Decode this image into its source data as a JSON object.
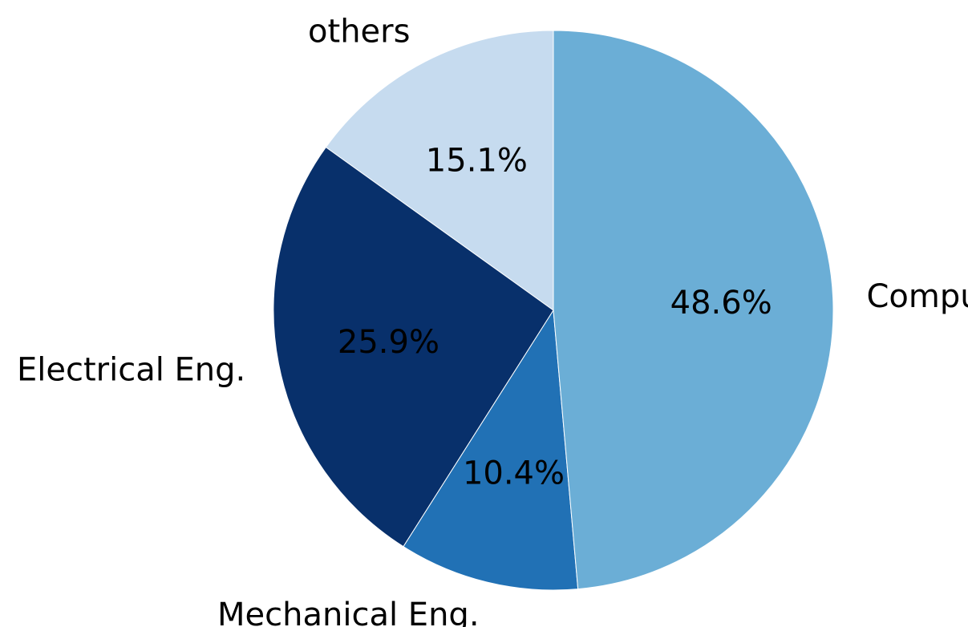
{
  "chart_data": {
    "type": "pie",
    "start_angle_deg": 90,
    "direction": "counterclockwise",
    "slices": [
      {
        "label": "others",
        "value": 15.1,
        "pct_label": "15.1%",
        "color": "#c6dbef"
      },
      {
        "label": "Electrical Eng.",
        "value": 25.9,
        "pct_label": "25.9%",
        "color": "#08306b"
      },
      {
        "label": "Mechanical Eng.",
        "value": 10.4,
        "pct_label": "10.4%",
        "color": "#2171b5"
      },
      {
        "label": "Computer Sc.",
        "value": 48.6,
        "pct_label": "48.6%",
        "color": "#6baed6"
      }
    ],
    "title": "",
    "legend": "none"
  }
}
